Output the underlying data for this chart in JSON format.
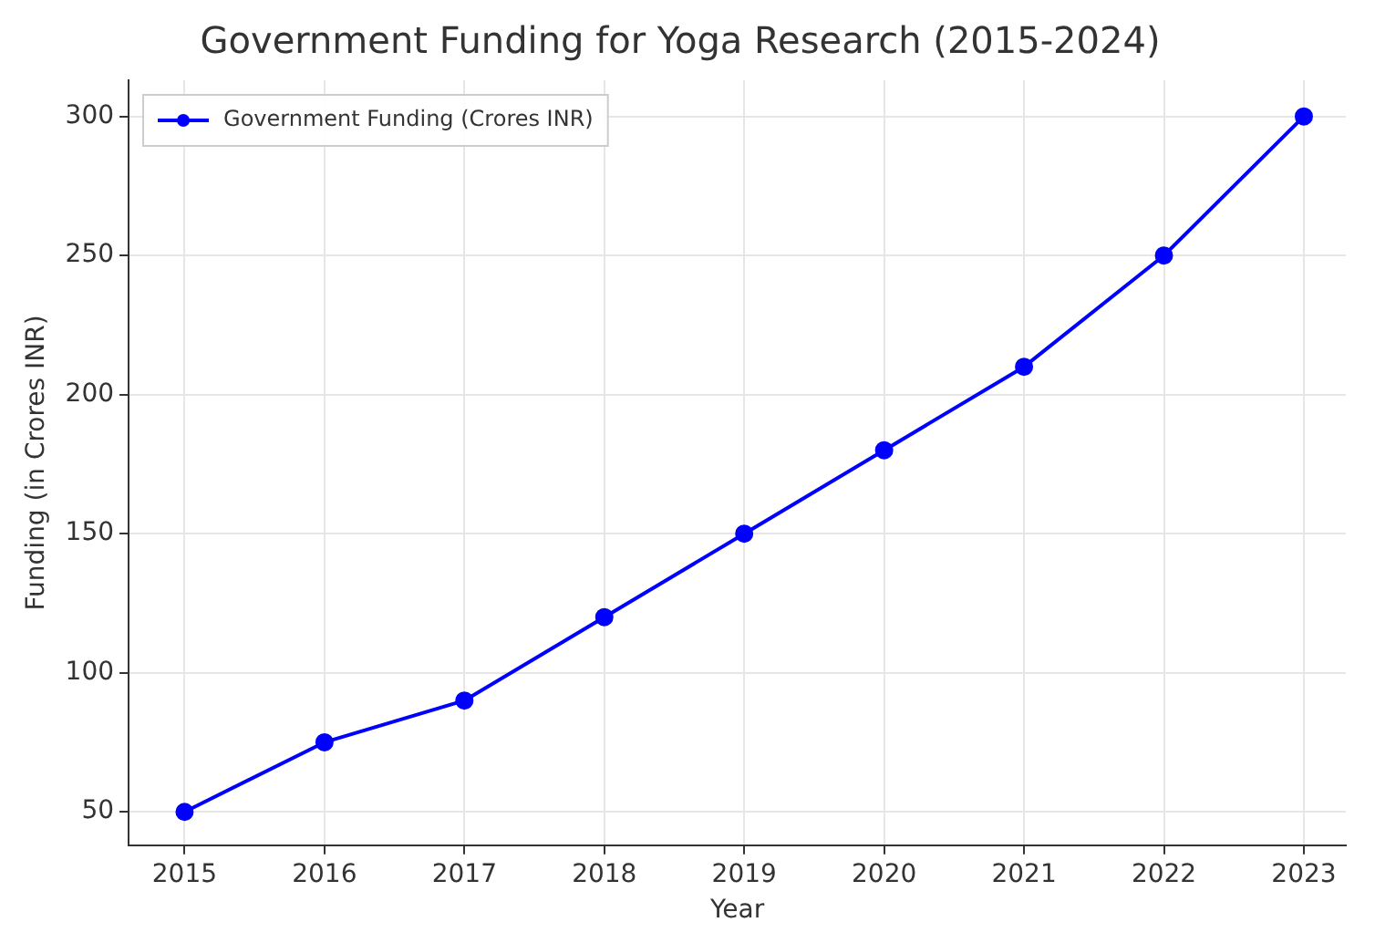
{
  "chart_data": {
    "type": "line",
    "title": "Government Funding for Yoga Research (2015-2024)",
    "xlabel": "Year",
    "ylabel": "Funding (in Crores INR)",
    "x": [
      2015,
      2016,
      2017,
      2018,
      2019,
      2020,
      2021,
      2022,
      2023
    ],
    "series": [
      {
        "name": "Government Funding (Crores INR)",
        "color": "#0000ff",
        "values": [
          50,
          75,
          90,
          120,
          150,
          180,
          210,
          250,
          300
        ]
      }
    ],
    "xlim": [
      2014.6,
      2023.3
    ],
    "xticks": [
      2015,
      2016,
      2017,
      2018,
      2019,
      2020,
      2021,
      2022,
      2023
    ],
    "ylim": [
      38,
      313
    ],
    "yticks": [
      50,
      100,
      150,
      200,
      250,
      300
    ],
    "grid": true,
    "legend": "top left",
    "marker": "circle",
    "line_style": "solid"
  }
}
